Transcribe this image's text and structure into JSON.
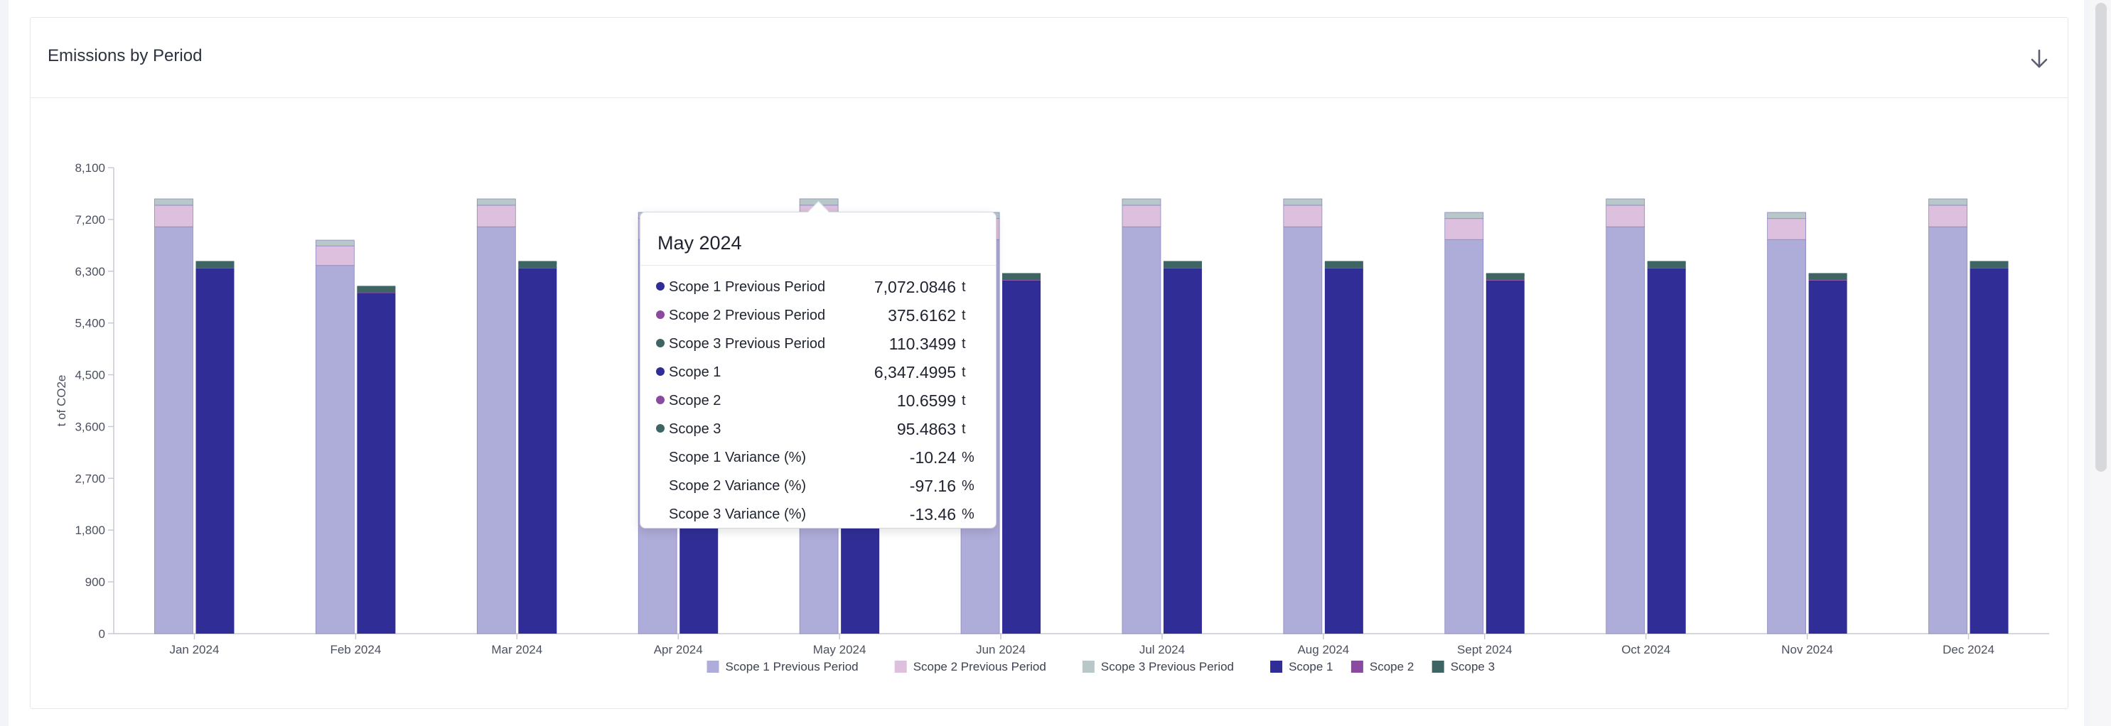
{
  "card": {
    "title": "Emissions by Period",
    "download_icon": "arrow-down-icon"
  },
  "colors": {
    "scope1_prev": "#aeacd8",
    "scope2_prev": "#dcc0dd",
    "scope3_prev": "#b8c8c8",
    "scope1": "#302e96",
    "scope2": "#8a4aa0",
    "scope3": "#3e6464"
  },
  "chart_data": {
    "type": "bar",
    "stacked": true,
    "title": "",
    "ylabel": "t of CO2e",
    "xlabel": "",
    "ylim": [
      0,
      8100
    ],
    "yticks": [
      0,
      900,
      1800,
      2700,
      3600,
      4500,
      5400,
      6300,
      7200,
      8100
    ],
    "ytick_labels": [
      "0",
      "900",
      "1,800",
      "2,700",
      "3,600",
      "4,500",
      "5,400",
      "6,300",
      "7,200",
      "8,100"
    ],
    "categories": [
      "Jan 2024",
      "Feb 2024",
      "Mar 2024",
      "Apr 2024",
      "May 2024",
      "Jun 2024",
      "Jul 2024",
      "Aug 2024",
      "Sept 2024",
      "Oct 2024",
      "Nov 2024",
      "Dec 2024"
    ],
    "stacks": [
      {
        "stack": "Previous Period",
        "series": [
          {
            "name": "Scope 1 Previous Period",
            "color_key": "scope1_prev",
            "values": [
              7072,
              6400,
              7072,
              6850,
              7072.0846,
              6850,
              7072,
              7072,
              6850,
              7072,
              6850,
              7072
            ]
          },
          {
            "name": "Scope 2 Previous Period",
            "color_key": "scope2_prev",
            "values": [
              375,
              340,
              375,
              365,
              375.6162,
              365,
              375,
              375,
              365,
              375,
              365,
              375
            ]
          },
          {
            "name": "Scope 3 Previous Period",
            "color_key": "scope3_prev",
            "values": [
              110,
              100,
              110,
              107,
              110.3499,
              107,
              110,
              110,
              107,
              110,
              107,
              110
            ]
          }
        ]
      },
      {
        "stack": "Current",
        "series": [
          {
            "name": "Scope 1",
            "color_key": "scope1",
            "values": [
              6347,
              5920,
              6347,
              6140,
              6347.4995,
              6140,
              6347,
              6347,
              6140,
              6347,
              6140,
              6347
            ]
          },
          {
            "name": "Scope 2",
            "color_key": "scope2",
            "values": [
              10,
              10,
              10,
              10,
              10.6599,
              10,
              10,
              10,
              10,
              10,
              10,
              10
            ]
          },
          {
            "name": "Scope 3",
            "color_key": "scope3",
            "values": [
              95,
              90,
              95,
              92,
              95.4863,
              92,
              95,
              95,
              92,
              95,
              92,
              95
            ]
          }
        ]
      }
    ],
    "legend": {
      "placement": "bottom",
      "items": [
        {
          "name": "Scope 1 Previous Period",
          "color_key": "scope1_prev"
        },
        {
          "name": "Scope 2 Previous Period",
          "color_key": "scope2_prev"
        },
        {
          "name": "Scope 3 Previous Period",
          "color_key": "scope3_prev"
        },
        {
          "name": "Scope 1",
          "color_key": "scope1"
        },
        {
          "name": "Scope 2",
          "color_key": "scope2"
        },
        {
          "name": "Scope 3",
          "color_key": "scope3"
        }
      ]
    },
    "grid": false
  },
  "tooltip": {
    "title": "May 2024",
    "rows": [
      {
        "label": "Scope 1 Previous Period",
        "value": "7,072.0846",
        "unit": "t",
        "color_key": "scope1"
      },
      {
        "label": "Scope 2 Previous Period",
        "value": "375.6162",
        "unit": "t",
        "color_key": "scope2"
      },
      {
        "label": "Scope 3 Previous Period",
        "value": "110.3499",
        "unit": "t",
        "color_key": "scope3"
      },
      {
        "label": "Scope 1",
        "value": "6,347.4995",
        "unit": "t",
        "color_key": "scope1"
      },
      {
        "label": "Scope 2",
        "value": "10.6599",
        "unit": "t",
        "color_key": "scope2"
      },
      {
        "label": "Scope 3",
        "value": "95.4863",
        "unit": "t",
        "color_key": "scope3"
      },
      {
        "label": "Scope 1 Variance (%)",
        "value": "-10.24",
        "unit": "%"
      },
      {
        "label": "Scope 2 Variance (%)",
        "value": "-97.16",
        "unit": "%"
      },
      {
        "label": "Scope 3 Variance (%)",
        "value": "-13.46",
        "unit": "%"
      }
    ]
  }
}
